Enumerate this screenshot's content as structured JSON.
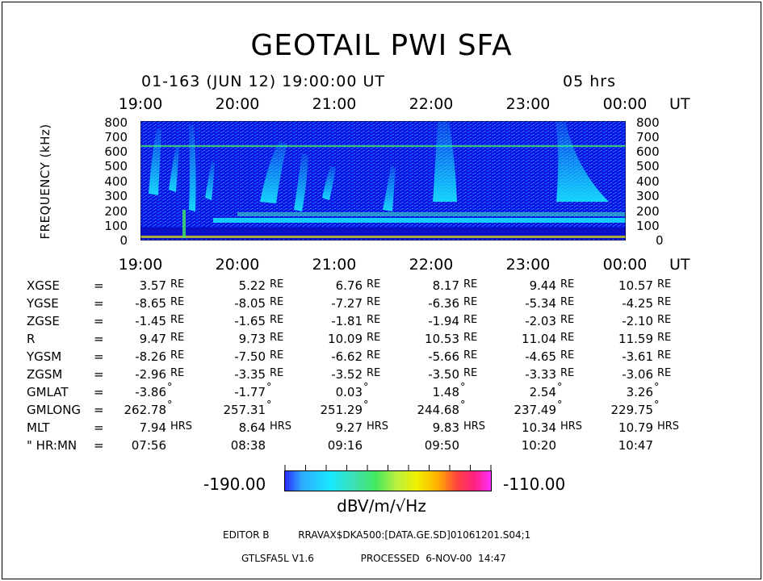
{
  "title": "GEOTAIL PWI SFA",
  "subtitle": "01-163 (JUN 12) 19:00:00 UT",
  "duration": "05 hrs",
  "time_axis": {
    "ticks": [
      "19:00",
      "20:00",
      "21:00",
      "22:00",
      "23:00",
      "00:00"
    ],
    "unit": "UT"
  },
  "chart_data": {
    "type": "heatmap",
    "title": "GEOTAIL PWI SFA",
    "x": [
      "19:00",
      "20:00",
      "21:00",
      "22:00",
      "23:00",
      "00:00"
    ],
    "xlabel": "UT",
    "ylabel": "FREQUENCY (kHz)",
    "yticks": [
      800,
      700,
      600,
      500,
      400,
      300,
      200,
      100,
      0
    ],
    "ylim": [
      0,
      800
    ],
    "colorbar": {
      "min": "-190.00",
      "max": "-110.00",
      "unit": "dBV/m/√Hz"
    },
    "colors": {
      "background": "#0a14e6",
      "cyan": "#18e8ff",
      "green": "#40e060",
      "yellow": "#f0f000",
      "red": "#ff2040",
      "magenta": "#ff30ff"
    }
  },
  "ephemeris": [
    {
      "name": "XGSE",
      "values": [
        "3.57",
        "5.22",
        "6.76",
        "8.17",
        "9.44",
        "10.57"
      ],
      "unit": "RE"
    },
    {
      "name": "YGSE",
      "values": [
        "-8.65",
        "-8.05",
        "-7.27",
        "-6.36",
        "-5.34",
        "-4.25"
      ],
      "unit": "RE"
    },
    {
      "name": "ZGSE",
      "values": [
        "-1.45",
        "-1.65",
        "-1.81",
        "-1.94",
        "-2.03",
        "-2.10"
      ],
      "unit": "RE"
    },
    {
      "name": "R",
      "values": [
        "9.47",
        "9.73",
        "10.09",
        "10.53",
        "11.04",
        "11.59"
      ],
      "unit": "RE"
    },
    {
      "name": "YGSM",
      "values": [
        "-8.26",
        "-7.50",
        "-6.62",
        "-5.66",
        "-4.65",
        "-3.61"
      ],
      "unit": "RE"
    },
    {
      "name": "ZGSM",
      "values": [
        "-2.96",
        "-3.35",
        "-3.52",
        "-3.50",
        "-3.33",
        "-3.06"
      ],
      "unit": "RE"
    },
    {
      "name": "GMLAT",
      "values": [
        "-3.86",
        "-1.77",
        "0.03",
        "1.48",
        "2.54",
        "3.26"
      ],
      "unit": "°"
    },
    {
      "name": "GMLONG",
      "values": [
        "262.78",
        "257.31",
        "251.29",
        "244.68",
        "237.49",
        "229.75"
      ],
      "unit": "°"
    },
    {
      "name": "MLT",
      "values": [
        "7.94",
        "8.64",
        "9.27",
        "9.83",
        "10.34",
        "10.79"
      ],
      "unit": "HRS"
    },
    {
      "name": "\" HR:MN",
      "values": [
        "07:56",
        "08:38",
        "09:16",
        "09:50",
        "10:20",
        "10:47"
      ],
      "unit": ""
    }
  ],
  "footer": {
    "editor": "EDITOR B",
    "file": "RRAVAX$DKA500:[DATA.GE.SD]01061201.S04;1",
    "version": "GTLSFA5L V1.6",
    "processed": "PROCESSED  6-NOV-00  14:47"
  }
}
